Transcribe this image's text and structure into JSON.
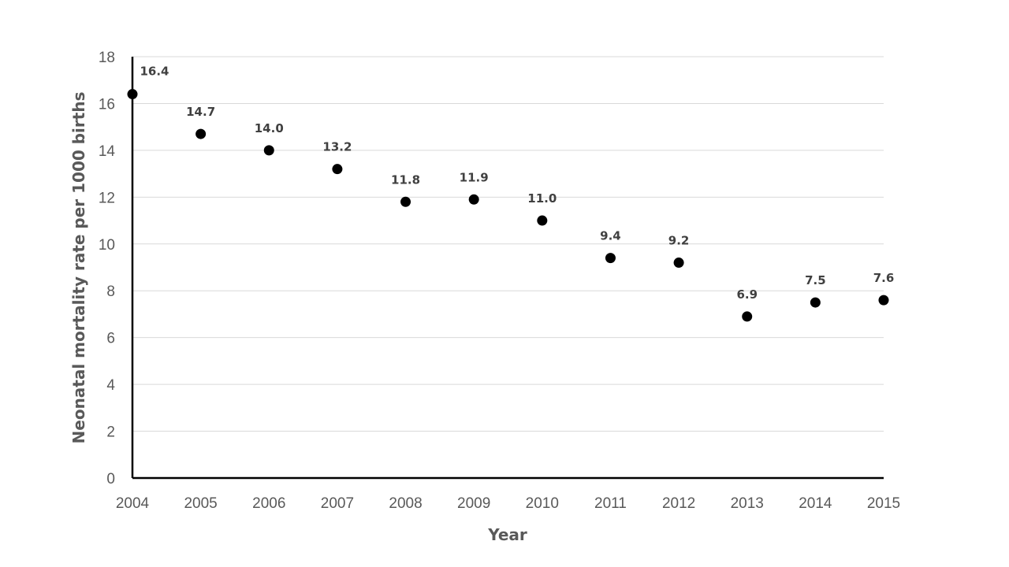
{
  "chart_data": {
    "type": "scatter",
    "title": "",
    "xlabel": "Year",
    "ylabel": "Neonatal mortality rate per 1000 births",
    "x": [
      "2004",
      "2005",
      "2006",
      "2007",
      "2008",
      "2009",
      "2010",
      "2011",
      "2012",
      "2013",
      "2014",
      "2015"
    ],
    "series": [
      {
        "values": [
          16.4,
          14.7,
          14.0,
          13.2,
          11.8,
          11.9,
          11.0,
          9.4,
          9.2,
          6.9,
          7.5,
          7.6
        ],
        "labels": [
          "16.4",
          "14.7",
          "14.0",
          "13.2",
          "11.8",
          "11.9",
          "11.0",
          "9.4",
          "9.2",
          "6.9",
          "7.5",
          "7.6"
        ],
        "color": "#000000"
      }
    ],
    "ylim": [
      0,
      18
    ],
    "yticks": [
      "0",
      "2",
      "4",
      "6",
      "8",
      "10",
      "12",
      "14",
      "16",
      "18"
    ],
    "grid": true,
    "legend": "none",
    "colors": {
      "marker": "#000000",
      "axis": "#000000",
      "grid": "#d9d9d9",
      "tick_text": "#595959",
      "label_text": "#404040"
    }
  }
}
